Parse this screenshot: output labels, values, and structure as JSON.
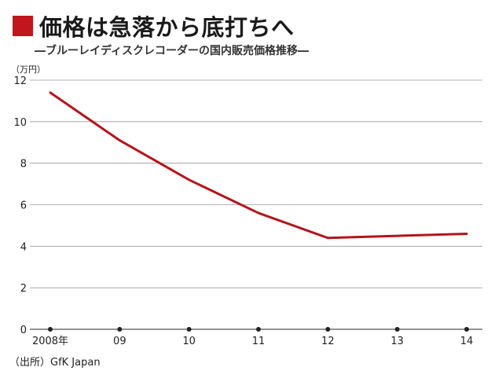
{
  "header": {
    "title": "価格は急落から底打ちへ",
    "subtitle": "―ブルーレイディスクレコーダーの国内販売価格推移―"
  },
  "source": "（出所）GfK Japan",
  "colors": {
    "accent": "#c0161c",
    "line": "#b5141b",
    "grid": "#999999"
  },
  "chart_data": {
    "type": "line",
    "title": "価格は急落から底打ちへ",
    "subtitle": "―ブルーレイディスクレコーダーの国内販売価格推移―",
    "ylabel": "（万円）",
    "xlabel": "",
    "categories": [
      "2008年",
      "09",
      "10",
      "11",
      "12",
      "13",
      "14"
    ],
    "x": [
      2008,
      2009,
      2010,
      2011,
      2012,
      2013,
      2014
    ],
    "series": [
      {
        "values": [
          11.4,
          9.1,
          7.2,
          5.6,
          4.4,
          4.5,
          4.6
        ]
      }
    ],
    "line_points_x": [
      2008,
      2009,
      2010,
      2011,
      2012,
      2013,
      2014
    ],
    "ylim": [
      0,
      12
    ],
    "yticks": [
      0,
      2,
      4,
      6,
      8,
      10,
      12
    ],
    "grid": true,
    "legend": "none"
  }
}
